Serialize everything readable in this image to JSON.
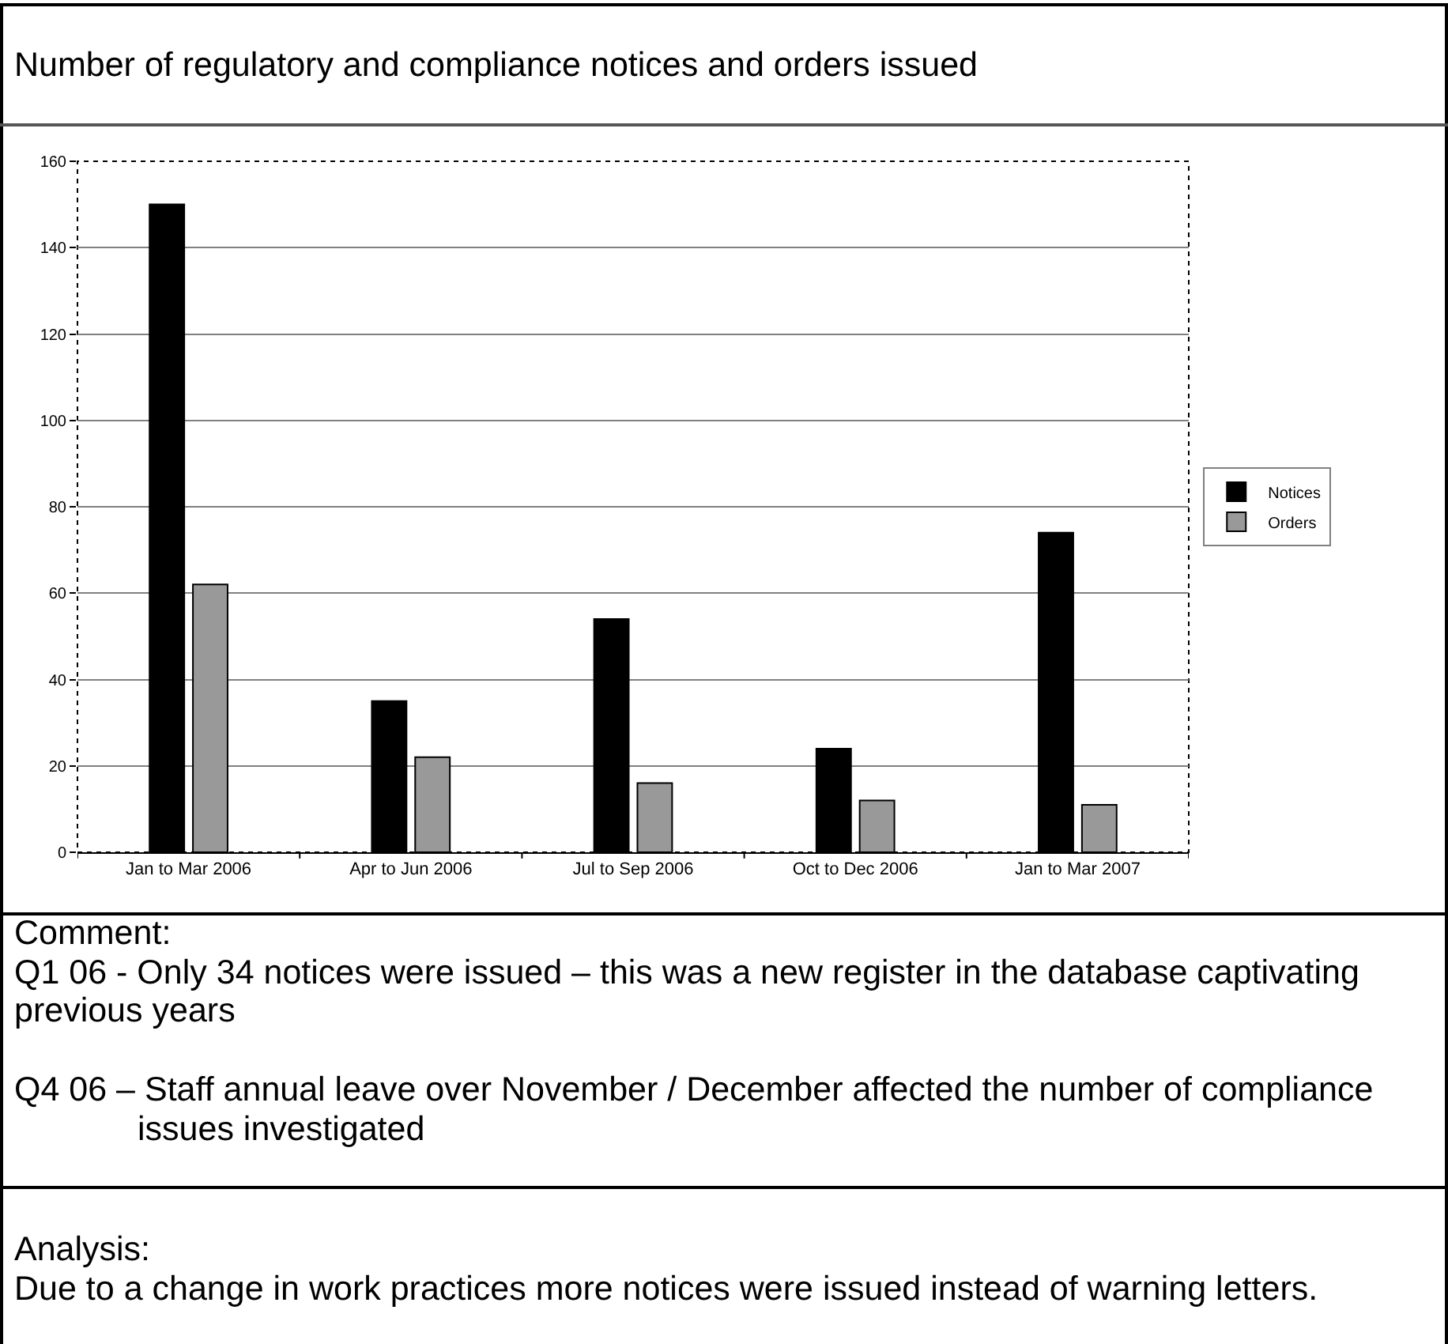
{
  "chart_data": {
    "type": "bar",
    "title": "Number of regulatory and compliance notices and orders issued",
    "categories": [
      "Jan to Mar 2006",
      "Apr to Jun 2006",
      "Jul to Sep 2006",
      "Oct to Dec 2006",
      "Jan to Mar 2007"
    ],
    "series": [
      {
        "name": "Notices",
        "color": "#000000",
        "values": [
          150,
          35,
          54,
          24,
          74
        ]
      },
      {
        "name": "Orders",
        "color": "#999999",
        "values": [
          62,
          22,
          16,
          12,
          11
        ]
      }
    ],
    "ylim": [
      0,
      160
    ],
    "yticks": [
      0,
      20,
      40,
      60,
      80,
      100,
      120,
      140,
      160
    ],
    "grid": "y",
    "legend": "right",
    "annotations": [
      "Comment:",
      "Q1 06 - Only 34 notices were issued – this was a new register in the database captivating previous years",
      "Q4 06 – Staff annual leave over November / December affected the number of compliance issues investigated",
      "Analysis:",
      "Due to a change in work practices more notices were issued instead of warning letters."
    ]
  }
}
